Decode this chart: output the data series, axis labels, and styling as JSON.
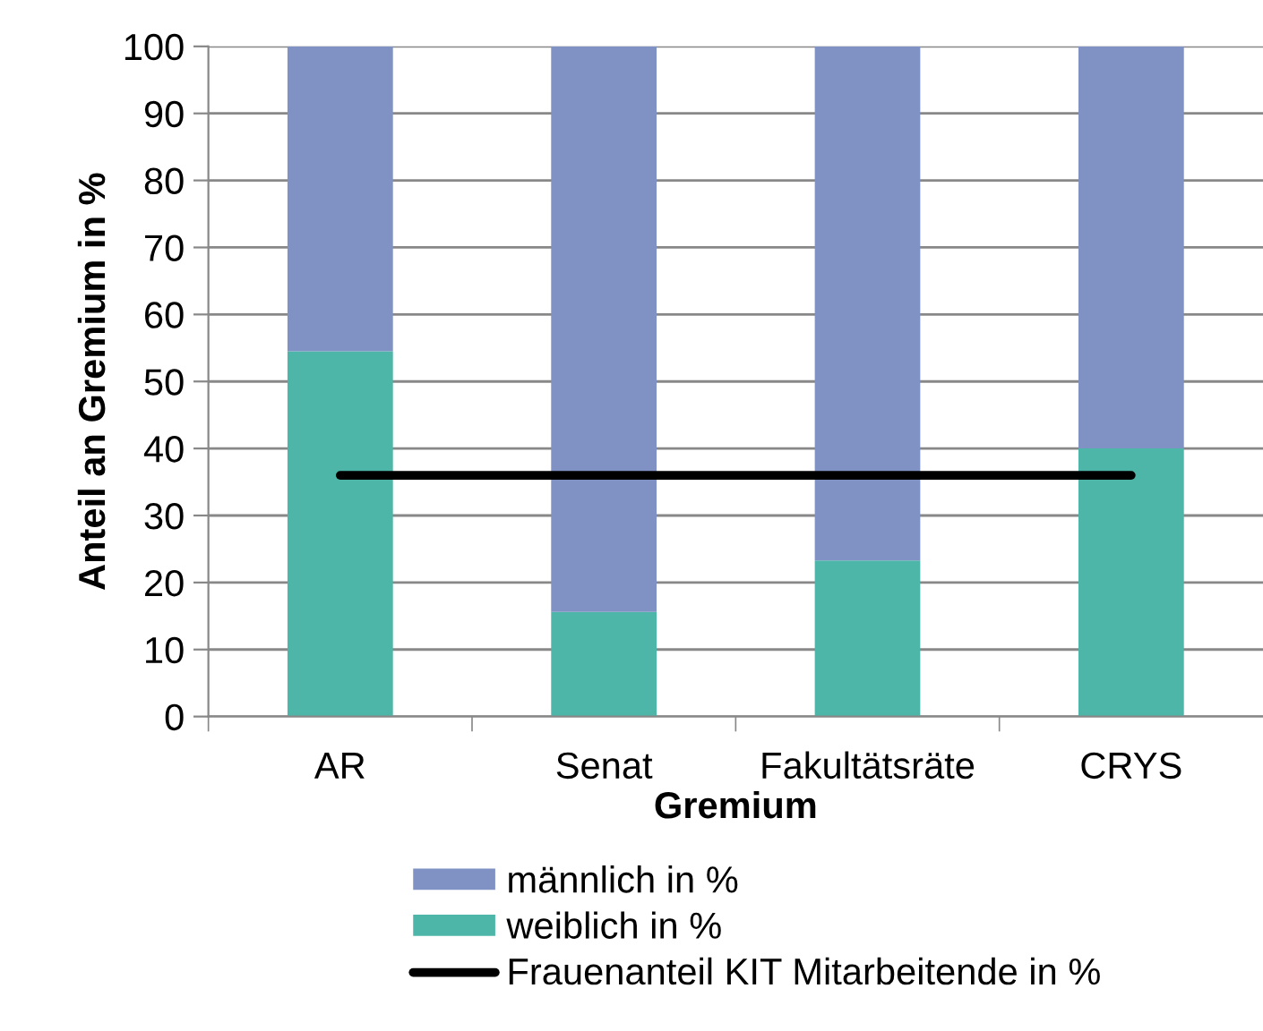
{
  "chart_data": {
    "type": "bar",
    "stacked": true,
    "xlabel": "Gremium",
    "ylabel": "Anteil an Gremium in %",
    "categories": [
      "AR",
      "Senat",
      "Fakultätsräte",
      "CRYS"
    ],
    "series": [
      {
        "name": "weiblich in %",
        "color": "#4db6a8",
        "values": [
          54.5,
          15.6,
          23.3,
          40
        ]
      },
      {
        "name": "männlich in %",
        "color": "#7f92c3",
        "values": [
          45.5,
          84.4,
          76.7,
          60
        ]
      },
      {
        "name": "Frauenanteil KIT Mitarbeitende in %",
        "type": "line",
        "color": "#000000",
        "values": [
          36,
          36,
          36,
          36
        ]
      }
    ],
    "ylim": [
      0,
      100
    ],
    "yticks": [
      0,
      10,
      20,
      30,
      40,
      50,
      60,
      70,
      80,
      90,
      100
    ],
    "grid": "y",
    "legend": "bottom",
    "marker": "none",
    "line_style": "solid"
  }
}
